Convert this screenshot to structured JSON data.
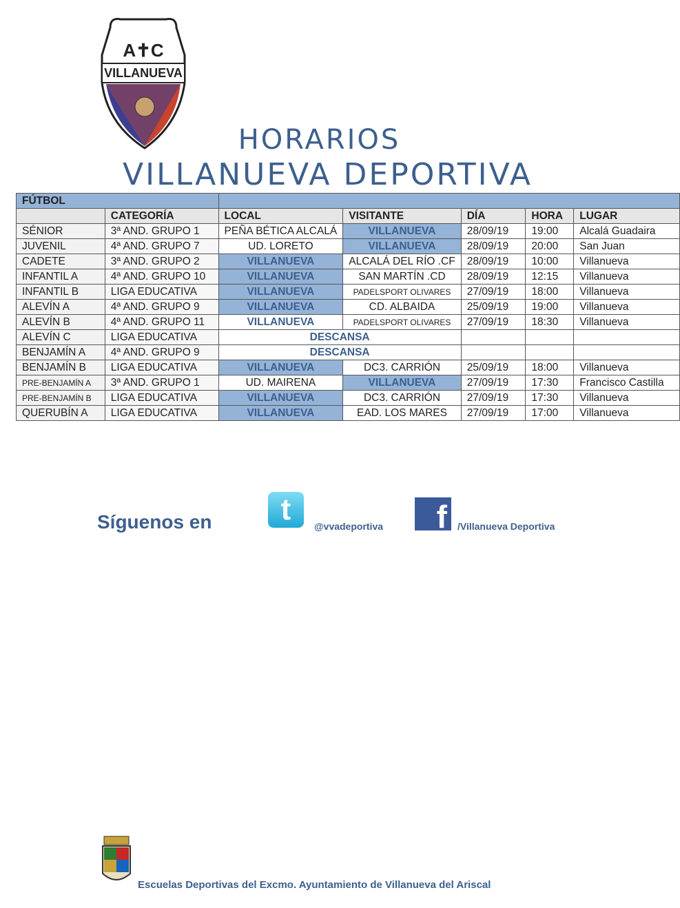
{
  "logo": {
    "text_top": "A✝C",
    "text_banner": "VILLANUEVA"
  },
  "title": {
    "line1": "HORARIOS",
    "line2": "VILLANUEVA DEPORTIVA"
  },
  "table": {
    "section": "FÚTBOL",
    "headers": [
      "",
      "CATEGORÍA",
      "LOCAL",
      "VISITANTE",
      "DÍA",
      "HORA",
      "LUGAR"
    ],
    "rows": [
      {
        "equipo": "SÉNIOR",
        "categoria": "3ª AND. GRUPO 1",
        "local": "PEÑA BÉTICA ALCALÁ",
        "visitante": "VILLANUEVA",
        "dia": "28/09/19",
        "hora": "19:00",
        "lugar": "Alcalá Guadaira"
      },
      {
        "equipo": "JUVENIL",
        "categoria": "4ª AND. GRUPO 7",
        "local": "UD. LORETO",
        "visitante": "VILLANUEVA",
        "dia": "28/09/19",
        "hora": "20:00",
        "lugar": "San Juan"
      },
      {
        "equipo": "CADETE",
        "categoria": "3ª AND. GRUPO 2",
        "local": "VILLANUEVA",
        "visitante": "ALCALÁ DEL RÍO .CF",
        "dia": "28/09/19",
        "hora": "10:00",
        "lugar": "Villanueva"
      },
      {
        "equipo": "INFANTIL A",
        "categoria": "4ª AND. GRUPO 10",
        "local": "VILLANUEVA",
        "visitante": "SAN MARTÍN .CD",
        "dia": "28/09/19",
        "hora": "12:15",
        "lugar": "Villanueva"
      },
      {
        "equipo": "INFANTIL B",
        "categoria": "LIGA EDUCATIVA",
        "local": "VILLANUEVA",
        "visitante": "PADELSPORT OLIVARES",
        "dia": "27/09/19",
        "hora": "18:00",
        "lugar": "Villanueva"
      },
      {
        "equipo": "ALEVÍN A",
        "categoria": "4ª AND. GRUPO 9",
        "local": "VILLANUEVA",
        "visitante": "CD. ALBAIDA",
        "dia": "25/09/19",
        "hora": "19:00",
        "lugar": "Villanueva"
      },
      {
        "equipo": "ALEVÍN B",
        "categoria": "4ª AND. GRUPO 11",
        "local": "VILLANUEVA",
        "visitante": "PADELSPORT OLIVARES",
        "dia": "27/09/19",
        "hora": "18:30",
        "lugar": "Villanueva"
      },
      {
        "equipo": "ALEVÍN C",
        "categoria": "LIGA EDUCATIVA",
        "descansa": "DESCANSA"
      },
      {
        "equipo": "BENJAMÍN A",
        "categoria": "4ª AND. GRUPO 9",
        "descansa": "DESCANSA"
      },
      {
        "equipo": "BENJAMÍN B",
        "categoria": "LIGA EDUCATIVA",
        "local": "VILLANUEVA",
        "visitante": "DC3. CARRIÓN",
        "dia": "25/09/19",
        "hora": "18:00",
        "lugar": "Villanueva"
      },
      {
        "equipo": "PRE-BENJAMÍN A",
        "categoria": "3ª AND. GRUPO 1",
        "local": "UD. MAIRENA",
        "visitante": "VILLANUEVA",
        "dia": "27/09/19",
        "hora": "17:30",
        "lugar": "Francisco Castilla"
      },
      {
        "equipo": "PRE-BENJAMÍN B",
        "categoria": "LIGA EDUCATIVA",
        "local": "VILLANUEVA",
        "visitante": "DC3. CARRIÓN",
        "dia": "27/09/19",
        "hora": "17:30",
        "lugar": "Villanueva"
      },
      {
        "equipo": "QUERUBÍN A",
        "categoria": "LIGA EDUCATIVA",
        "local": "VILLANUEVA",
        "visitante": "EAD. LOS MARES",
        "dia": "27/09/19",
        "hora": "17:00",
        "lugar": "Villanueva"
      }
    ]
  },
  "social": {
    "follow": "Síguenos en",
    "twitter_icon": "twitter-icon",
    "twitter_handle": "@vvadeportiva",
    "facebook_icon": "facebook-icon",
    "facebook_handle": "/Villanueva Deportiva"
  },
  "footer": {
    "text": "Escuelas Deportivas del Excmo. Ayuntamiento de Villanueva del Ariscal"
  },
  "colors": {
    "accent": "#3d5f8e",
    "highlight": "#95b3d7"
  }
}
